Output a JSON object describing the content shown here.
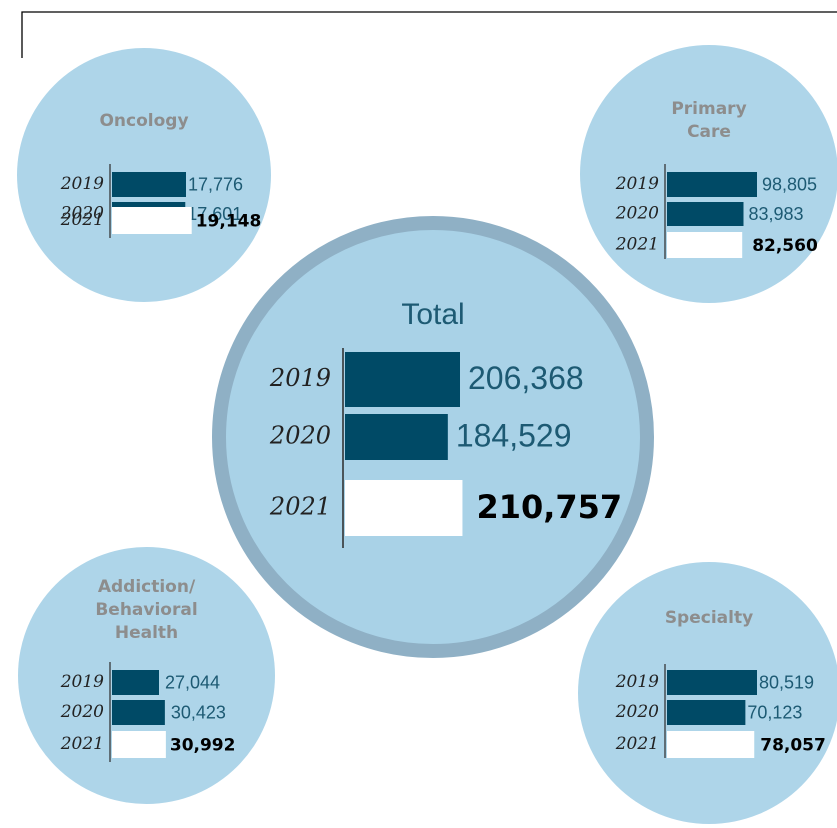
{
  "colors": {
    "circle": "#aed5e9",
    "ring": "#8fb0c5",
    "bar_prior": "#004a66",
    "bar_2021": "#ffffff",
    "title_gray": "#8d8d8d",
    "value": "#1d5a73"
  },
  "chart_data": [
    {
      "type": "bar",
      "orientation": "horizontal",
      "title": "Total",
      "categories": [
        "2019",
        "2020",
        "2021"
      ],
      "values": [
        206368,
        184529,
        210757
      ],
      "value_labels": [
        "206,368",
        "184,529",
        "210,757"
      ]
    },
    {
      "type": "bar",
      "orientation": "horizontal",
      "title": "Oncology",
      "categories": [
        "2019",
        "2020",
        "2021"
      ],
      "values": [
        17776,
        17601,
        19148
      ],
      "value_labels": [
        "17,776",
        "17,601",
        "19,148"
      ]
    },
    {
      "type": "bar",
      "orientation": "horizontal",
      "title": "Primary Care",
      "categories": [
        "2019",
        "2020",
        "2021"
      ],
      "values": [
        98805,
        83983,
        82560
      ],
      "value_labels": [
        "98,805",
        "83,983",
        "82,560"
      ]
    },
    {
      "type": "bar",
      "orientation": "horizontal",
      "title": "Addiction/ Behavioral Health",
      "categories": [
        "2019",
        "2020",
        "2021"
      ],
      "values": [
        27044,
        30423,
        30992
      ],
      "value_labels": [
        "27,044",
        "30,423",
        "30,992"
      ]
    },
    {
      "type": "bar",
      "orientation": "horizontal",
      "title": "Specialty",
      "categories": [
        "2019",
        "2020",
        "2021"
      ],
      "values": [
        80519,
        70123,
        78057
      ],
      "value_labels": [
        "80,519",
        "70,123",
        "78,057"
      ]
    }
  ],
  "titles": {
    "total": "Total",
    "oncology": "Oncology",
    "primary_care_1": "Primary",
    "primary_care_2": "Care",
    "addiction_1": "Addiction/",
    "addiction_2": "Behavioral",
    "addiction_3": "Health",
    "specialty": "Specialty"
  }
}
